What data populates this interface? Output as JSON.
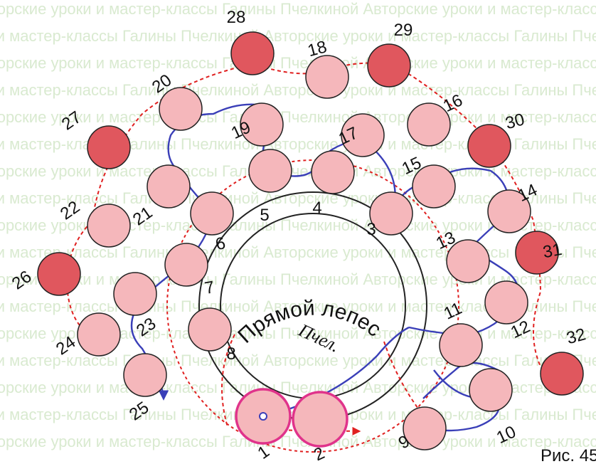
{
  "watermark": "Авторские уроки и мастер-классы Галины Пчелкиной",
  "title": "Прямой лепест",
  "signature": "Пчел.",
  "figure_label": "Рис. 45",
  "colors": {
    "pink_bead": "#f5b7bb",
    "red_bead": "#e0575e",
    "blue_thread": "#3a3fb8",
    "red_thread": "#e02020",
    "ring": "#222222",
    "start_bead_stroke": "#e0338b"
  },
  "beads": [
    {
      "label": "1",
      "type": "start"
    },
    {
      "label": "2",
      "type": "start"
    },
    {
      "label": "3",
      "type": "pink"
    },
    {
      "label": "4",
      "type": "pink"
    },
    {
      "label": "5",
      "type": "pink"
    },
    {
      "label": "6",
      "type": "pink"
    },
    {
      "label": "7",
      "type": "pink"
    },
    {
      "label": "8",
      "type": "pink"
    },
    {
      "label": "9",
      "type": "pink"
    },
    {
      "label": "10",
      "type": "pink"
    },
    {
      "label": "11",
      "type": "pink"
    },
    {
      "label": "12",
      "type": "pink"
    },
    {
      "label": "13",
      "type": "pink"
    },
    {
      "label": "14",
      "type": "pink"
    },
    {
      "label": "15",
      "type": "pink"
    },
    {
      "label": "16",
      "type": "pink"
    },
    {
      "label": "17",
      "type": "pink"
    },
    {
      "label": "18",
      "type": "pink"
    },
    {
      "label": "19",
      "type": "pink"
    },
    {
      "label": "20",
      "type": "pink"
    },
    {
      "label": "21",
      "type": "pink"
    },
    {
      "label": "22",
      "type": "pink"
    },
    {
      "label": "23",
      "type": "pink"
    },
    {
      "label": "24",
      "type": "pink"
    },
    {
      "label": "25",
      "type": "pink"
    },
    {
      "label": "26",
      "type": "red"
    },
    {
      "label": "27",
      "type": "red"
    },
    {
      "label": "28",
      "type": "red"
    },
    {
      "label": "29",
      "type": "red"
    },
    {
      "label": "30",
      "type": "red"
    },
    {
      "label": "31",
      "type": "red"
    },
    {
      "label": "32",
      "type": "red"
    }
  ]
}
